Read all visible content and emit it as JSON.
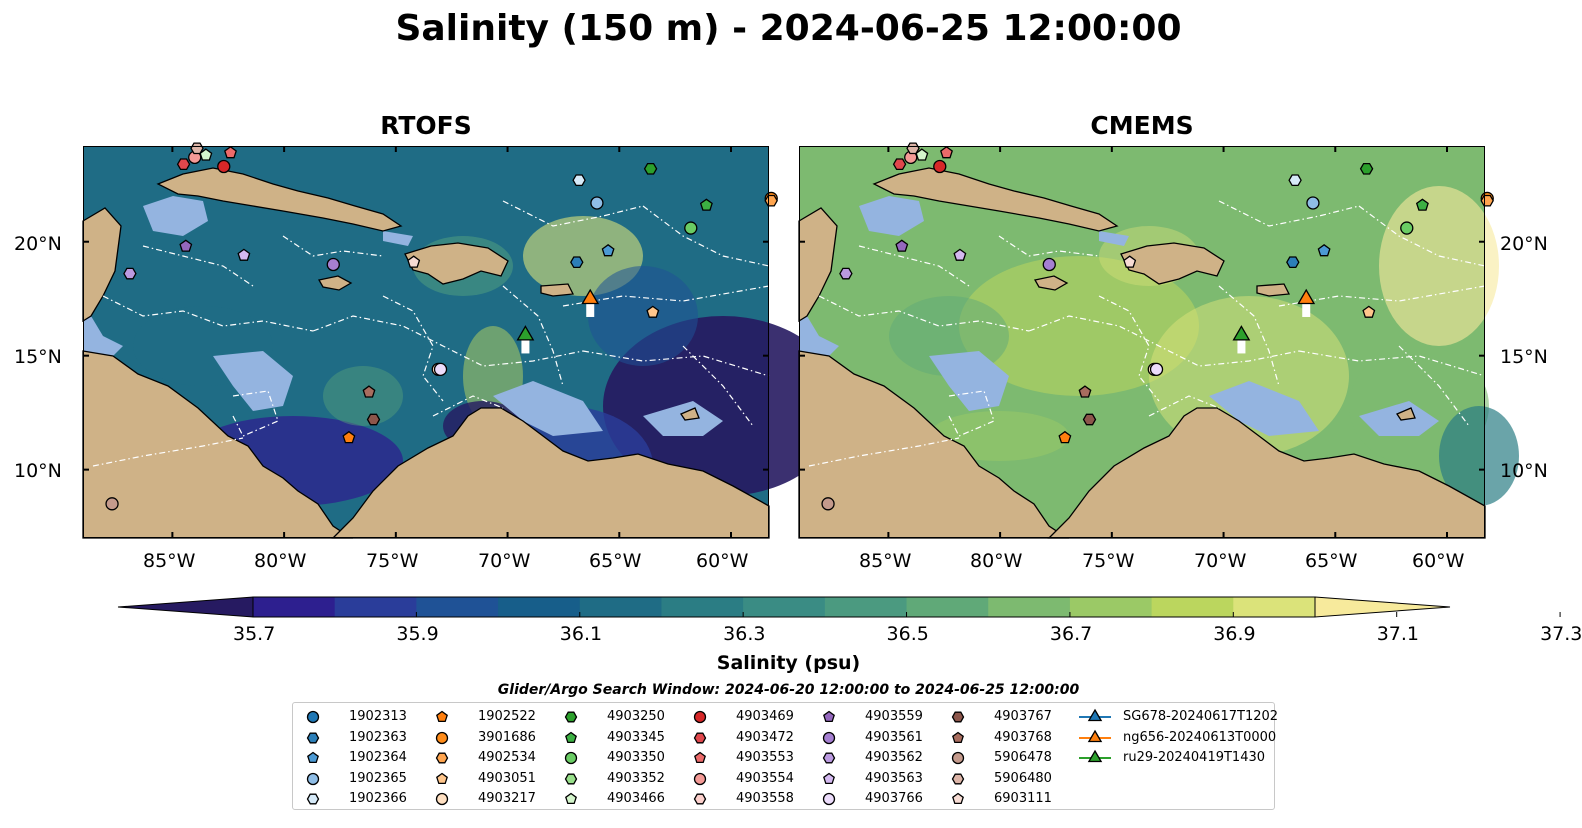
{
  "title": "Salinity (150 m) - 2024-06-25 12:00:00",
  "panels": {
    "left": {
      "title": "RTOFS"
    },
    "right": {
      "title": "CMEMS"
    }
  },
  "lon_ticks": [
    "85°W",
    "80°W",
    "75°W",
    "70°W",
    "65°W",
    "60°W"
  ],
  "lat_ticks": [
    "20°N",
    "15°N",
    "10°N"
  ],
  "colorbar": {
    "label": "Salinity (psu)",
    "tick_labels": [
      "35.7",
      "35.9",
      "36.1",
      "36.3",
      "36.5",
      "36.7",
      "36.9",
      "37.1",
      "37.3"
    ],
    "colors": [
      "#261a61",
      "#2d1f8f",
      "#2a3d9a",
      "#1f5296",
      "#175e8a",
      "#1f6c85",
      "#2b7d84",
      "#3a8c84",
      "#4b9a80",
      "#60a978",
      "#7dba70",
      "#9bc966",
      "#bbd65e",
      "#dbe37a",
      "#f7ea9c"
    ]
  },
  "search_window": "Glider/Argo Search Window: 2024-06-20 12:00:00 to 2024-06-25 12:00:00",
  "legend": [
    {
      "label": "1902313",
      "marker": "circle",
      "color": "#1f77b4"
    },
    {
      "label": "1902363",
      "marker": "hexagon",
      "color": "#2c7fb8"
    },
    {
      "label": "1902364",
      "marker": "pentagon",
      "color": "#4c9ad4"
    },
    {
      "label": "1902365",
      "marker": "circle",
      "color": "#8fbde6"
    },
    {
      "label": "1902366",
      "marker": "hexagon",
      "color": "#d6eaf8"
    },
    {
      "label": "1902522",
      "marker": "pentagon",
      "color": "#ff7f0e"
    },
    {
      "label": "3901686",
      "marker": "circle",
      "color": "#ff8c1a"
    },
    {
      "label": "4902534",
      "marker": "hexagon",
      "color": "#ffa54f"
    },
    {
      "label": "4903051",
      "marker": "pentagon",
      "color": "#ffc68c"
    },
    {
      "label": "4903217",
      "marker": "circle",
      "color": "#ffe0c2"
    },
    {
      "label": "4903250",
      "marker": "hexagon",
      "color": "#2ca02c"
    },
    {
      "label": "4903345",
      "marker": "pentagon",
      "color": "#3cb043"
    },
    {
      "label": "4903350",
      "marker": "circle",
      "color": "#6acc64"
    },
    {
      "label": "4903352",
      "marker": "hexagon",
      "color": "#98df8a"
    },
    {
      "label": "4903466",
      "marker": "pentagon",
      "color": "#d4f5cc"
    },
    {
      "label": "4903469",
      "marker": "circle",
      "color": "#d62728"
    },
    {
      "label": "4903472",
      "marker": "hexagon",
      "color": "#e0474c"
    },
    {
      "label": "4903553",
      "marker": "pentagon",
      "color": "#ec6a6a"
    },
    {
      "label": "4903554",
      "marker": "circle",
      "color": "#f49a96"
    },
    {
      "label": "4903558",
      "marker": "hexagon",
      "color": "#fcd0cc"
    },
    {
      "label": "4903559",
      "marker": "pentagon",
      "color": "#9467bd"
    },
    {
      "label": "4903561",
      "marker": "circle",
      "color": "#a57fd1"
    },
    {
      "label": "4903562",
      "marker": "hexagon",
      "color": "#bb9ae0"
    },
    {
      "label": "4903563",
      "marker": "pentagon",
      "color": "#d4b9f0"
    },
    {
      "label": "4903766",
      "marker": "circle",
      "color": "#ecdcfb"
    },
    {
      "label": "4903767",
      "marker": "hexagon",
      "color": "#8c564b"
    },
    {
      "label": "4903768",
      "marker": "pentagon",
      "color": "#a86d5f"
    },
    {
      "label": "5906478",
      "marker": "circle",
      "color": "#c49a8c"
    },
    {
      "label": "5906480",
      "marker": "hexagon",
      "color": "#ddb5a8"
    },
    {
      "label": "6903111",
      "marker": "pentagon",
      "color": "#f7dcd4"
    },
    {
      "label": "SG678-20240617T1202",
      "marker": "triangle",
      "color": "#1f77b4"
    },
    {
      "label": "ng656-20240613T0000",
      "marker": "triangle",
      "color": "#ff7f0e"
    },
    {
      "label": "ru29-20240419T1430",
      "marker": "triangle",
      "color": "#2ca02c"
    }
  ]
}
